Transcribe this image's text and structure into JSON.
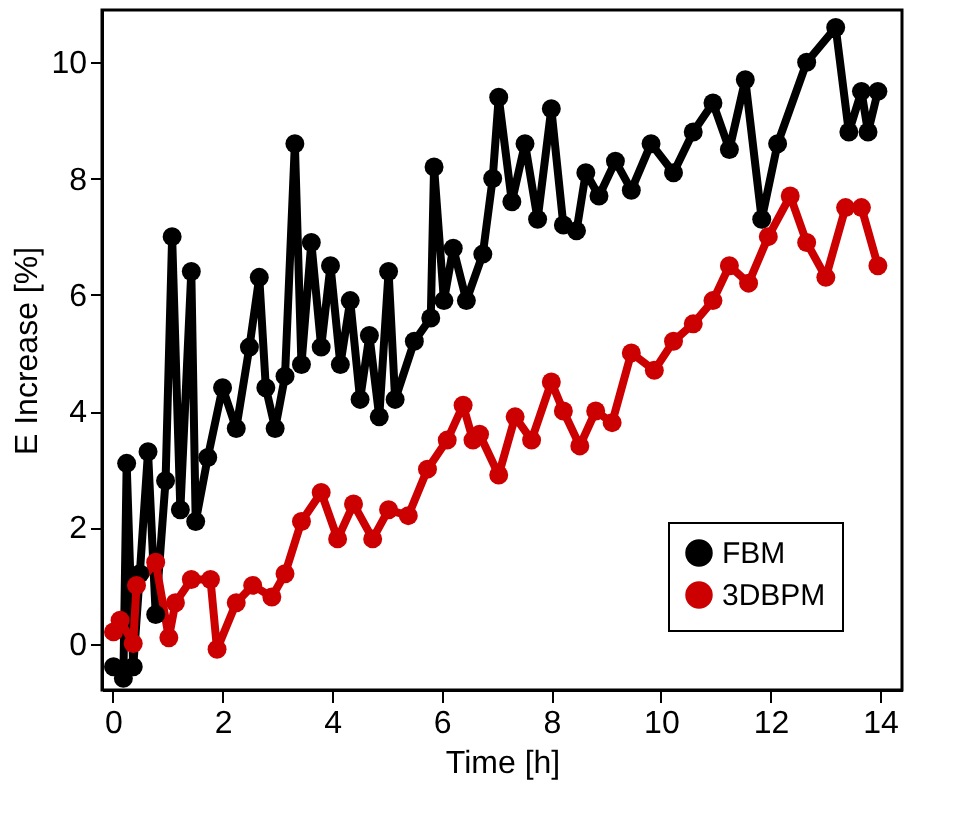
{
  "chart_data": {
    "type": "line",
    "xlabel": "Time [h]",
    "ylabel": "E Increase [%]",
    "xlim": [
      -0.2,
      14.4
    ],
    "ylim": [
      -0.8,
      10.9
    ],
    "xticks": [
      0,
      2,
      4,
      6,
      8,
      10,
      12,
      14
    ],
    "yticks": [
      0,
      2,
      4,
      6,
      8,
      10
    ],
    "grid": false,
    "legend": "bottom right",
    "marker": "circle",
    "line_style": "solid",
    "series": [
      {
        "name": "FBM",
        "color": "#000000",
        "x": [
          0.01,
          0.19,
          0.25,
          0.37,
          0.49,
          0.64,
          0.78,
          0.96,
          1.08,
          1.23,
          1.43,
          1.51,
          1.73,
          2.0,
          2.25,
          2.49,
          2.67,
          2.79,
          2.96,
          3.14,
          3.32,
          3.44,
          3.62,
          3.8,
          3.97,
          4.15,
          4.33,
          4.51,
          4.68,
          4.86,
          5.03,
          5.15,
          5.5,
          5.8,
          5.86,
          6.04,
          6.21,
          6.45,
          6.75,
          6.93,
          7.04,
          7.28,
          7.52,
          7.75,
          8.0,
          8.22,
          8.46,
          8.63,
          8.87,
          9.17,
          9.46,
          9.82,
          10.23,
          10.59,
          10.95,
          11.25,
          11.54,
          11.84,
          12.13,
          12.66,
          13.19,
          13.43,
          13.66,
          13.78,
          13.96
        ],
        "values": [
          -0.4,
          -0.6,
          3.1,
          -0.4,
          1.2,
          3.3,
          0.5,
          2.8,
          7.0,
          2.3,
          6.4,
          2.1,
          3.2,
          4.4,
          3.7,
          5.1,
          6.3,
          4.4,
          3.7,
          4.6,
          8.6,
          4.8,
          6.9,
          5.1,
          6.5,
          4.8,
          5.9,
          4.2,
          5.3,
          3.9,
          6.4,
          4.2,
          5.2,
          5.6,
          8.2,
          5.9,
          6.8,
          5.9,
          6.7,
          8.0,
          9.4,
          7.6,
          8.6,
          7.3,
          9.2,
          7.2,
          7.1,
          8.1,
          7.7,
          8.3,
          7.8,
          8.6,
          8.1,
          8.8,
          9.3,
          8.5,
          9.7,
          7.3,
          8.6,
          10.0,
          10.6,
          8.8,
          9.5,
          8.8,
          9.5
        ]
      },
      {
        "name": "3DBPM",
        "color": "#cc0000",
        "x": [
          0.01,
          0.13,
          0.37,
          0.43,
          0.78,
          1.02,
          1.14,
          1.43,
          1.78,
          1.9,
          2.25,
          2.55,
          2.9,
          3.14,
          3.44,
          3.8,
          4.1,
          4.39,
          4.74,
          5.03,
          5.39,
          5.74,
          6.1,
          6.39,
          6.57,
          6.69,
          7.04,
          7.34,
          7.64,
          8.0,
          8.22,
          8.52,
          8.81,
          9.11,
          9.46,
          9.88,
          10.23,
          10.59,
          10.95,
          11.25,
          11.6,
          11.96,
          12.36,
          12.66,
          13.01,
          13.37,
          13.66,
          13.96
        ],
        "values": [
          0.2,
          0.4,
          0.0,
          1.0,
          1.4,
          0.1,
          0.7,
          1.1,
          1.1,
          -0.1,
          0.7,
          1.0,
          0.8,
          1.2,
          2.1,
          2.6,
          1.8,
          2.4,
          1.8,
          2.3,
          2.2,
          3.0,
          3.5,
          4.1,
          3.5,
          3.6,
          2.9,
          3.9,
          3.5,
          4.5,
          4.0,
          3.4,
          4.0,
          3.8,
          5.0,
          4.7,
          5.2,
          5.5,
          5.9,
          6.5,
          6.2,
          7.0,
          7.7,
          6.9,
          6.3,
          7.5,
          7.5,
          6.5
        ]
      }
    ]
  }
}
